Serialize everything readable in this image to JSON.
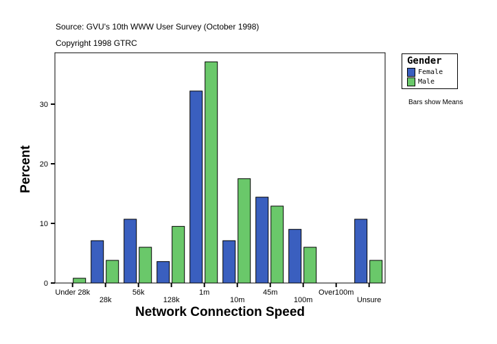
{
  "header": {
    "source": "Source: GVU's 10th WWW User Survey (October 1998)",
    "copyright": "Copyright 1998 GTRC"
  },
  "note": "Bars show Means",
  "chart_data": {
    "type": "bar",
    "xlabel": "Network Connection Speed",
    "ylabel": "Percent",
    "categories": [
      "Under 28k",
      "28k",
      "56k",
      "128k",
      "1m",
      "10m",
      "45m",
      "100m",
      "Over100m",
      "Unsure"
    ],
    "series": [
      {
        "name": "Female",
        "color": "#3a5fbf",
        "values": [
          0,
          7.1,
          10.7,
          3.6,
          32.2,
          7.1,
          14.4,
          9.0,
          0,
          10.7
        ]
      },
      {
        "name": "Male",
        "color": "#6ac86a",
        "values": [
          0.8,
          3.8,
          6.0,
          9.5,
          37.1,
          17.5,
          12.9,
          6.0,
          0,
          3.8
        ]
      }
    ],
    "ylim": [
      0,
      38.6
    ],
    "yticks": [
      0,
      10,
      20,
      30
    ],
    "legend": {
      "title": "Gender",
      "placement": "right"
    },
    "grid": false
  }
}
